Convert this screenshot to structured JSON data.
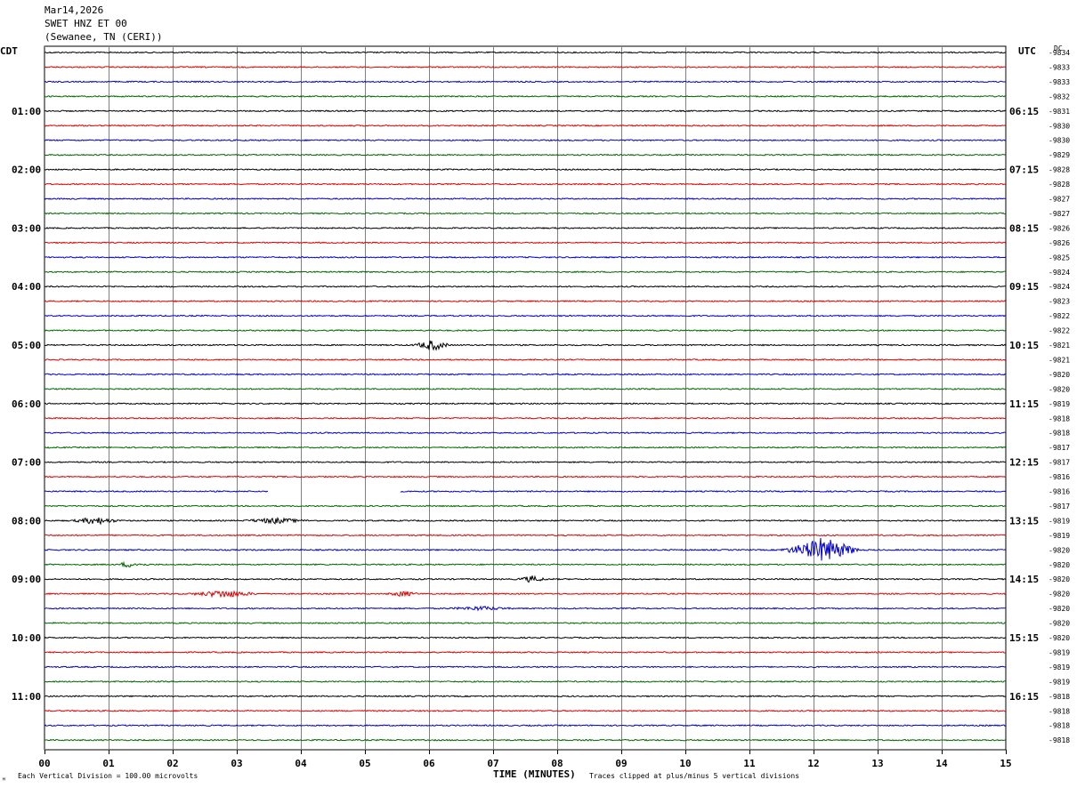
{
  "header": {
    "date": "Mar14,2026",
    "station": "SWET HNZ ET 00",
    "location": "(Sewanee, TN (CERI))"
  },
  "labels": {
    "left_tz": "CDT",
    "right_tz": "UTC",
    "dc_header": "DC",
    "xlabel": "TIME (MINUTES)",
    "scale_note": "Each Vertical Division =  100.00 microvolts",
    "clip_note": "Traces clipped at plus/minus 5 vertical divisions",
    "corner_mark": "ᴹ"
  },
  "colors": {
    "trace_cycle": [
      "#000000",
      "#dd0000",
      "#0000cc",
      "#006600"
    ],
    "grid": "#808080"
  },
  "chart_data": {
    "type": "line",
    "x_range_minutes": [
      0,
      15
    ],
    "x_ticks": [
      "00",
      "01",
      "02",
      "03",
      "04",
      "05",
      "06",
      "07",
      "08",
      "09",
      "10",
      "11",
      "12",
      "13",
      "14",
      "15"
    ],
    "hour_labels_left": [
      "01:00",
      "02:00",
      "03:00",
      "04:00",
      "05:00",
      "06:00",
      "07:00",
      "08:00",
      "09:00",
      "10:00",
      "11:00"
    ],
    "hour_labels_right": [
      "06:15",
      "07:15",
      "08:15",
      "09:15",
      "10:15",
      "11:15",
      "12:15",
      "13:15",
      "14:15",
      "15:15",
      "16:15"
    ],
    "dc_offsets": [
      "-9834",
      "-9833",
      "-9833",
      "-9832",
      "-9831",
      "-9830",
      "-9830",
      "-9829",
      "-9828",
      "-9828",
      "-9827",
      "-9827",
      "-9826",
      "-9826",
      "-9825",
      "-9824",
      "-9824",
      "-9823",
      "-9822",
      "-9822",
      "-9821",
      "-9821",
      "-9820",
      "-9820",
      "-9819",
      "-9818",
      "-9818",
      "-9817",
      "-9817",
      "-9816",
      "-9816",
      "-9817",
      "-9819",
      "-9819",
      "-9820",
      "-9820",
      "-9820",
      "-9820",
      "-9820",
      "-9820",
      "-9820",
      "-9819",
      "-9819",
      "-9819",
      "-9818",
      "-9818",
      "-9818",
      "-9818"
    ],
    "events": [
      {
        "trace": 20,
        "start_min": 5.6,
        "end_min": 6.3,
        "amp": 6,
        "peak_min": 6.05
      },
      {
        "trace": 32,
        "start_min": 0.4,
        "end_min": 1.3,
        "amp": 4,
        "peak_min": 0.8
      },
      {
        "trace": 32,
        "start_min": 3.1,
        "end_min": 4.3,
        "amp": 3,
        "peak_min": 3.6
      },
      {
        "trace": 34,
        "start_min": 11.2,
        "end_min": 12.7,
        "amp": 14,
        "peak_min": 12.15
      },
      {
        "trace": 35,
        "start_min": 1.2,
        "end_min": 2.0,
        "amp": 2.5,
        "peak_min": 1.3
      },
      {
        "trace": 36,
        "start_min": 7.4,
        "end_min": 8.0,
        "amp": 3.5,
        "peak_min": 7.6
      },
      {
        "trace": 37,
        "start_min": 2.0,
        "end_min": 3.3,
        "amp": 4,
        "peak_min": 2.8
      },
      {
        "trace": 37,
        "start_min": 5.3,
        "end_min": 5.9,
        "amp": 3,
        "peak_min": 5.6
      },
      {
        "trace": 38,
        "start_min": 6.2,
        "end_min": 7.4,
        "amp": 2,
        "peak_min": 6.8
      }
    ],
    "gaps": [
      {
        "trace": 29,
        "start_min": 0.0,
        "end_min": 0.0
      },
      {
        "trace": 30,
        "start_min": 3.5,
        "end_min": 5.55
      }
    ]
  }
}
